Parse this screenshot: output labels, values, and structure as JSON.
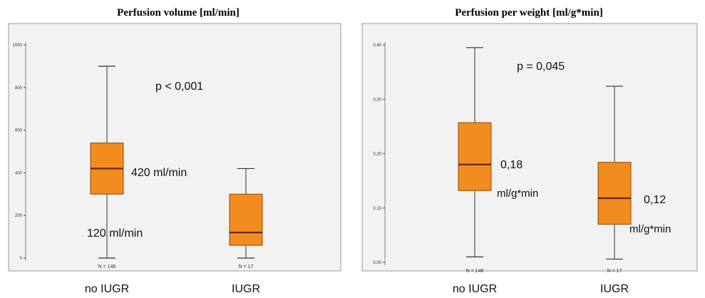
{
  "chart_data": [
    {
      "type": "box",
      "title": "Perfusion volume [ml/min]",
      "categories": [
        "no IUGR",
        "IUGR"
      ],
      "ylim": [
        0,
        1000
      ],
      "yticks": [
        0,
        200,
        400,
        600,
        800,
        1000
      ],
      "ytick_labels": [
        "0",
        "200",
        "400",
        "600",
        "800",
        "1000"
      ],
      "boxes": [
        {
          "category": "no IUGR",
          "min": 0,
          "q1": 300,
          "median": 420,
          "q3": 540,
          "max": 900,
          "n_label": "N = 146"
        },
        {
          "category": "IUGR",
          "min": 0,
          "q1": 60,
          "median": 120,
          "q3": 300,
          "max": 420,
          "n_label": "N = 17"
        }
      ],
      "annotations": [
        {
          "text": "p < 0,001"
        },
        {
          "text": "420 ml/min"
        },
        {
          "text": "120 ml/min"
        }
      ],
      "colors": {
        "box_fill": "#F28C1E",
        "box_stroke": "#8A4A10",
        "median": "#5A2A0A",
        "plot_bg": "#F2F2F2",
        "frame": "#999999"
      }
    },
    {
      "type": "box",
      "title": "Perfusion per weight [ml/g*min]",
      "categories": [
        "no IUGR",
        "IUGR"
      ],
      "ylim": [
        0,
        0.4
      ],
      "yticks": [
        0,
        0.1,
        0.2,
        0.3,
        0.4
      ],
      "ytick_labels": [
        "0,00",
        "0,10",
        "0,20",
        "0,30",
        "0,40"
      ],
      "boxes": [
        {
          "category": "no IUGR",
          "min": 0.01,
          "q1": 0.132,
          "median": 0.18,
          "q3": 0.257,
          "max": 0.395,
          "n_label": "N = 146"
        },
        {
          "category": "IUGR",
          "min": 0.006,
          "q1": 0.07,
          "median": 0.118,
          "q3": 0.184,
          "max": 0.324,
          "n_label": "N = 17"
        }
      ],
      "annotations": [
        {
          "text": "p = 0,045"
        },
        {
          "text": "0,18"
        },
        {
          "text": "ml/g*min"
        },
        {
          "text": "0,12"
        },
        {
          "text": "ml/g*min"
        }
      ],
      "colors": {
        "box_fill": "#F28C1E",
        "box_stroke": "#8A4A10",
        "median": "#5A2A0A",
        "plot_bg": "#F2F2F2",
        "frame": "#999999"
      }
    }
  ]
}
